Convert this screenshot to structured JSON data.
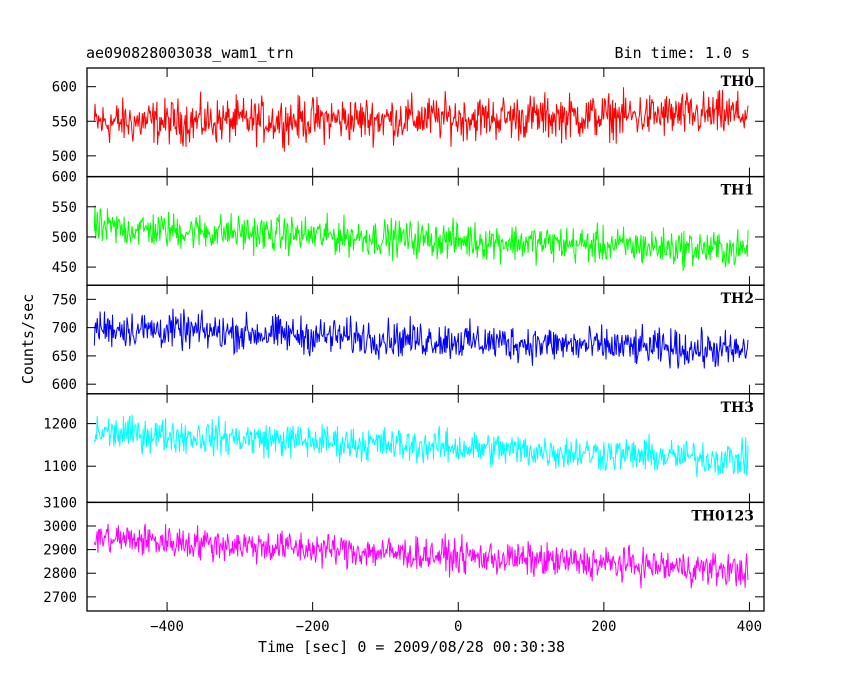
{
  "header": {
    "title": "ae090828003038_wam1_trn",
    "bin_time": "Bin time: 1.0 s"
  },
  "chart_data": {
    "type": "line",
    "title": "ae090828003038_wam1_trn",
    "subtitle": "Bin time: 1.0 s",
    "xlabel": "Time [sec] 0 = 2009/08/28 00:30:38",
    "ylabel": "Counts/sec",
    "xlim": [
      -510,
      420
    ],
    "xticks": [
      -400,
      -200,
      0,
      200,
      400
    ],
    "x_start": -500,
    "x_end": 398,
    "x_step": 1,
    "panels": [
      {
        "name": "TH0",
        "color": "#ff0000",
        "ylim": [
          470,
          627
        ],
        "yticks": [
          500,
          550,
          600
        ],
        "trend_start": 548,
        "trend_end": 560,
        "spread": 48
      },
      {
        "name": "TH1",
        "color": "#00ff00",
        "ylim": [
          420,
          600
        ],
        "yticks": [
          450,
          500,
          550,
          600
        ],
        "trend_start": 515,
        "trend_end": 478,
        "spread": 45
      },
      {
        "name": "TH2",
        "color": "#0000ff",
        "ylim": [
          583,
          775
        ],
        "yticks": [
          600,
          650,
          700,
          750
        ],
        "trend_start": 700,
        "trend_end": 658,
        "spread": 48
      },
      {
        "name": "TH3",
        "color": "#00ffff",
        "ylim": [
          1015,
          1270
        ],
        "yticks": [
          1100,
          1200
        ],
        "trend_start": 1180,
        "trend_end": 1115,
        "spread": 60
      },
      {
        "name": "TH0123",
        "color": "#ff00ff",
        "ylim": [
          2640,
          3100
        ],
        "yticks": [
          2700,
          2800,
          2900,
          3000,
          3100
        ],
        "trend_start": 2950,
        "trend_end": 2810,
        "spread": 105
      }
    ]
  }
}
